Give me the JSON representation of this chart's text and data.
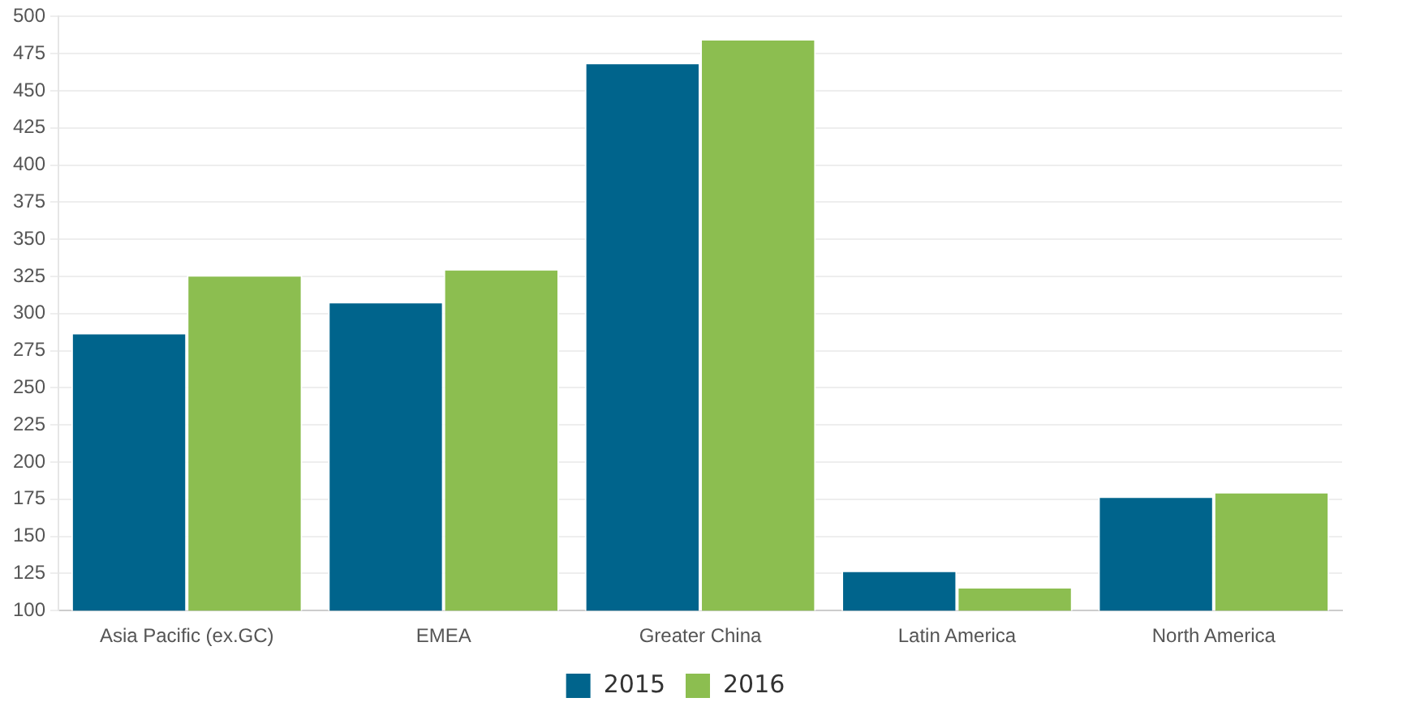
{
  "chart_data": {
    "type": "bar",
    "categories": [
      "Asia Pacific (ex.GC)",
      "EMEA",
      "Greater China",
      "Latin America",
      "North America"
    ],
    "series": [
      {
        "name": "2015",
        "color": "#00648c",
        "values": [
          287,
          308,
          469,
          127,
          177
        ]
      },
      {
        "name": "2016",
        "color": "#8cbe50",
        "values": [
          326,
          330,
          485,
          116,
          180
        ]
      }
    ],
    "ylim": [
      100,
      500
    ],
    "yticks": [
      100,
      125,
      150,
      175,
      200,
      225,
      250,
      275,
      300,
      325,
      350,
      375,
      400,
      425,
      450,
      475,
      500
    ],
    "grid": "y",
    "legend": "bottom"
  }
}
